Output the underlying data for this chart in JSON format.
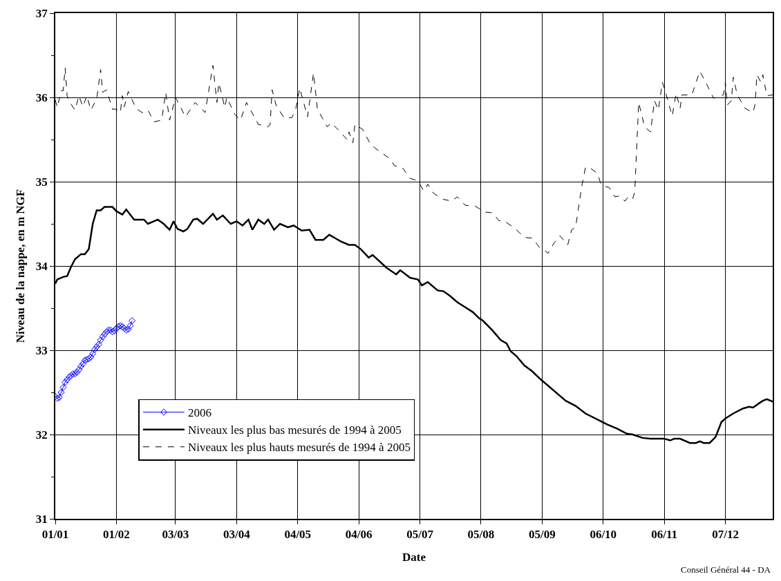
{
  "chart_data": {
    "type": "line",
    "xlabel": "Date",
    "ylabel": "Niveau de la nappe, en m NGF",
    "annotations": [
      "Conseil Général 44 - DA"
    ],
    "xlim": [
      "--01-01",
      "--12-31"
    ],
    "xticks": [
      {
        "value": "--01-01",
        "label": "01/01"
      },
      {
        "value": "--02-01",
        "label": "01/02"
      },
      {
        "value": "--03-03",
        "label": "03/03"
      },
      {
        "value": "--04-03",
        "label": "03/04"
      },
      {
        "value": "--05-04",
        "label": "04/05"
      },
      {
        "value": "--06-04",
        "label": "04/06"
      },
      {
        "value": "--07-05",
        "label": "05/07"
      },
      {
        "value": "--08-05",
        "label": "05/08"
      },
      {
        "value": "--09-05",
        "label": "05/09"
      },
      {
        "value": "--10-06",
        "label": "06/10"
      },
      {
        "value": "--11-06",
        "label": "06/11"
      },
      {
        "value": "--12-07",
        "label": "07/12"
      }
    ],
    "ylim": [
      31,
      37
    ],
    "yticks": [
      31,
      {
        "value": 31.5,
        "label": null
      },
      32,
      {
        "value": 32.5,
        "label": null
      },
      33,
      {
        "value": 33.5,
        "label": null
      },
      34,
      {
        "value": 34.5,
        "label": null
      },
      35,
      {
        "value": 35.5,
        "label": null
      },
      36,
      {
        "value": 36.5,
        "label": null
      },
      37
    ],
    "grid": true,
    "legend": "bottom left",
    "series": [
      {
        "name": "2006",
        "color": "#0000ff",
        "marker": "diamond",
        "line_style": "solid",
        "x": [
          "--01-01",
          "--01-02",
          "--01-03",
          "--01-04",
          "--01-05",
          "--01-06",
          "--01-07",
          "--01-08",
          "--01-09",
          "--01-10",
          "--01-11",
          "--01-12",
          "--01-13",
          "--01-14",
          "--01-15",
          "--01-16",
          "--01-17",
          "--01-18",
          "--01-19",
          "--01-20",
          "--01-21",
          "--01-22",
          "--01-23",
          "--01-24",
          "--01-25",
          "--01-26",
          "--01-27",
          "--01-28",
          "--01-29",
          "--01-30",
          "--01-31",
          "--02-01",
          "--02-02",
          "--02-03",
          "--02-04",
          "--02-05",
          "--02-06",
          "--02-07",
          "--02-08",
          "--02-09"
        ],
        "values": [
          32.45,
          32.43,
          32.44,
          32.5,
          32.56,
          32.62,
          32.65,
          32.68,
          32.7,
          32.72,
          32.72,
          32.74,
          32.77,
          32.81,
          32.84,
          32.88,
          32.89,
          32.9,
          32.92,
          32.96,
          33.01,
          33.04,
          33.07,
          33.12,
          33.16,
          33.19,
          33.22,
          33.24,
          33.24,
          33.22,
          33.23,
          33.26,
          33.28,
          33.29,
          33.28,
          33.26,
          33.24,
          33.25,
          33.29,
          33.35
        ]
      },
      {
        "name": "Niveaux les plus bas mesurés de 1994 à 2005",
        "color": "#000000",
        "marker": "none",
        "line_style": "solid",
        "x": [
          "--01-01",
          "--01-02",
          "--01-05",
          "--01-07",
          "--01-09",
          "--01-11",
          "--01-14",
          "--01-16",
          "--01-18",
          "--01-20",
          "--01-22",
          "--01-24",
          "--01-26",
          "--01-30",
          "--02-01",
          "--02-04",
          "--02-06",
          "--02-10",
          "--02-15",
          "--02-17",
          "--02-22",
          "--02-25",
          "--02-28",
          "--03-02",
          "--03-04",
          "--03-07",
          "--03-09",
          "--03-12",
          "--03-14",
          "--03-17",
          "--03-22",
          "--03-24",
          "--03-27",
          "--03-31",
          "--04-03",
          "--04-06",
          "--04-09",
          "--04-11",
          "--04-14",
          "--04-17",
          "--04-19",
          "--04-22",
          "--04-25",
          "--04-29",
          "--05-02",
          "--05-06",
          "--05-10",
          "--05-13",
          "--05-17",
          "--05-20",
          "--05-23",
          "--05-26",
          "--05-30",
          "--06-02",
          "--06-05",
          "--06-09",
          "--06-11",
          "--06-18",
          "--06-23",
          "--06-25",
          "--06-30",
          "--07-04",
          "--07-06",
          "--07-09",
          "--07-14",
          "--07-17",
          "--07-20",
          "--07-24",
          "--07-28",
          "--08-01",
          "--08-04",
          "--08-06",
          "--08-11",
          "--08-15",
          "--08-18",
          "--08-20",
          "--08-23",
          "--08-27",
          "--08-31",
          "--09-04",
          "--09-08",
          "--09-14",
          "--09-17",
          "--09-22",
          "--09-27",
          "--10-03",
          "--10-08",
          "--10-13",
          "--10-18",
          "--10-21",
          "--10-26",
          "--10-30",
          "--11-06",
          "--11-09",
          "--11-11",
          "--11-14",
          "--11-19",
          "--11-22",
          "--11-24",
          "--11-26",
          "--11-29",
          "--12-02",
          "--12-05",
          "--12-07",
          "--12-11",
          "--12-16",
          "--12-19",
          "--12-21",
          "--12-24",
          "--12-26",
          "--12-28",
          "--12-31"
        ],
        "values": [
          33.79,
          33.84,
          33.87,
          33.88,
          33.99,
          34.08,
          34.14,
          34.14,
          34.2,
          34.5,
          34.66,
          34.66,
          34.7,
          34.7,
          34.65,
          34.61,
          34.67,
          34.55,
          34.55,
          34.5,
          34.55,
          34.5,
          34.43,
          34.53,
          34.44,
          34.41,
          34.44,
          34.55,
          34.56,
          34.5,
          34.62,
          34.55,
          34.6,
          34.5,
          34.53,
          34.48,
          34.55,
          34.43,
          34.55,
          34.5,
          34.55,
          34.43,
          34.5,
          34.46,
          34.48,
          34.42,
          34.43,
          34.31,
          34.31,
          34.37,
          34.33,
          34.29,
          34.25,
          34.25,
          34.2,
          34.1,
          34.13,
          33.98,
          33.9,
          33.95,
          33.86,
          33.84,
          33.77,
          33.81,
          33.71,
          33.7,
          33.65,
          33.57,
          33.51,
          33.45,
          33.38,
          33.35,
          33.23,
          33.12,
          33.08,
          32.99,
          32.93,
          32.82,
          32.75,
          32.66,
          32.58,
          32.46,
          32.4,
          32.34,
          32.25,
          32.18,
          32.12,
          32.07,
          32.01,
          32.0,
          31.96,
          31.95,
          31.95,
          31.93,
          31.95,
          31.95,
          31.9,
          31.9,
          31.92,
          31.9,
          31.9,
          31.97,
          32.15,
          32.19,
          32.25,
          32.31,
          32.33,
          32.32,
          32.37,
          32.4,
          32.42,
          32.39
        ]
      },
      {
        "name": "Niveaux les plus hauts mesurés de 1994 à 2005",
        "color": "#000000",
        "marker": "none",
        "line_style": "dashed",
        "x": [
          "--01-01",
          "--01-02",
          "--01-04",
          "--01-05",
          "--01-06",
          "--01-07",
          "--01-09",
          "--01-11",
          "--01-13",
          "--01-15",
          "--01-17",
          "--01-19",
          "--01-22",
          "--01-24",
          "--01-25",
          "--01-27",
          "--01-30",
          "--02-01",
          "--02-03",
          "--02-04",
          "--02-05",
          "--02-07",
          "--02-11",
          "--02-14",
          "--02-17",
          "--02-20",
          "--02-24",
          "--02-26",
          "--02-28",
          "--03-03",
          "--03-08",
          "--03-13",
          "--03-18",
          "--03-22",
          "--03-24",
          "--03-25",
          "--03-28",
          "--03-29",
          "--04-02",
          "--04-05",
          "--04-08",
          "--04-14",
          "--04-19",
          "--04-20",
          "--04-21",
          "--04-23",
          "--04-27",
          "--05-01",
          "--05-03",
          "--05-05",
          "--05-09",
          "--05-12",
          "--05-14",
          "--05-19",
          "--05-21",
          "--05-26",
          "--05-29",
          "--05-30",
          "--06-01",
          "--06-02",
          "--06-06",
          "--06-10",
          "--06-15",
          "--06-20",
          "--06-22",
          "--06-26",
          "--06-30",
          "--07-04",
          "--07-07",
          "--07-09",
          "--07-12",
          "--07-17",
          "--07-21",
          "--07-24",
          "--07-28",
          "--08-02",
          "--08-07",
          "--08-11",
          "--08-14",
          "--08-17",
          "--08-22",
          "--08-27",
          "--08-31",
          "--09-04",
          "--09-06",
          "--09-08",
          "--09-11",
          "--09-14",
          "--09-18",
          "--09-20",
          "--09-22",
          "--09-25",
          "--09-27",
          "--09-29",
          "--10-03",
          "--10-05",
          "--10-09",
          "--10-12",
          "--10-14",
          "--10-17",
          "--10-19",
          "--10-21",
          "--10-22",
          "--10-24",
          "--10-27",
          "--10-30",
          "--11-01",
          "--11-03",
          "--11-05",
          "--11-07",
          "--11-10",
          "--11-12",
          "--11-14",
          "--11-15",
          "--11-20",
          "--11-22",
          "--11-24",
          "--11-27",
          "--12-01",
          "--12-06",
          "--12-07",
          "--12-08",
          "--12-10",
          "--12-11",
          "--12-13",
          "--12-17",
          "--12-21",
          "--12-22",
          "--12-23",
          "--12-25",
          "--12-26",
          "--12-28",
          "--12-31"
        ],
        "values": [
          35.97,
          35.88,
          36.08,
          36.08,
          36.35,
          36.02,
          35.92,
          35.85,
          36.02,
          35.89,
          36.02,
          35.85,
          35.98,
          36.33,
          36.06,
          36.09,
          35.86,
          35.86,
          35.82,
          36.02,
          35.89,
          36.07,
          35.87,
          35.82,
          35.85,
          35.71,
          35.73,
          36.06,
          35.73,
          36.0,
          35.77,
          35.94,
          35.82,
          36.38,
          35.94,
          36.17,
          35.88,
          36.0,
          35.8,
          35.73,
          35.94,
          35.68,
          35.65,
          35.68,
          36.09,
          35.91,
          35.76,
          35.76,
          35.86,
          36.11,
          35.77,
          36.29,
          35.86,
          35.65,
          35.7,
          35.58,
          35.5,
          35.59,
          35.46,
          35.68,
          35.62,
          35.44,
          35.35,
          35.27,
          35.19,
          35.17,
          35.04,
          35.01,
          34.89,
          34.97,
          34.86,
          34.79,
          34.77,
          34.82,
          34.72,
          34.71,
          34.64,
          34.63,
          34.54,
          34.53,
          34.45,
          34.34,
          34.33,
          34.21,
          34.19,
          34.15,
          34.27,
          34.36,
          34.25,
          34.43,
          34.46,
          34.93,
          35.17,
          35.17,
          35.1,
          34.96,
          34.93,
          34.82,
          34.83,
          34.77,
          34.83,
          34.8,
          34.88,
          35.94,
          35.65,
          35.59,
          35.96,
          35.85,
          36.18,
          36.03,
          35.78,
          36.05,
          35.87,
          36.03,
          36.03,
          36.17,
          36.31,
          36.18,
          35.99,
          36.03,
          36.18,
          35.91,
          35.96,
          36.24,
          36.03,
          35.87,
          35.82,
          35.91,
          36.27,
          36.18,
          36.27,
          36.02,
          36.03
        ]
      }
    ]
  }
}
